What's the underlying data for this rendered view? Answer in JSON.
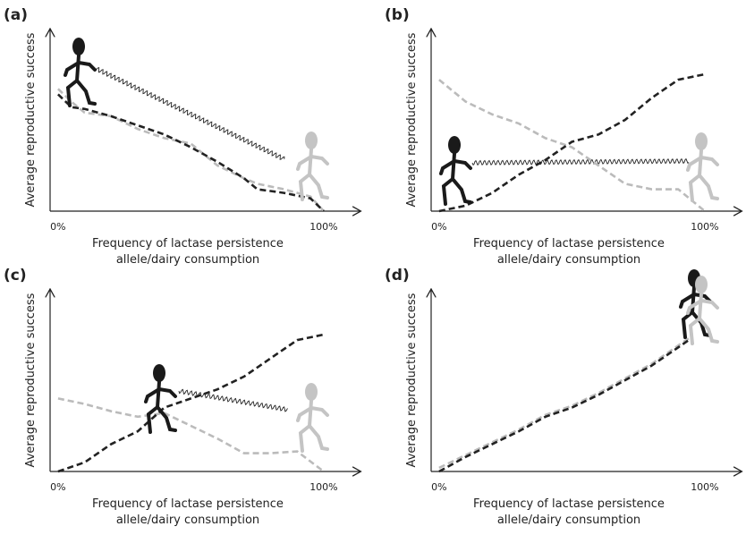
{
  "chart_data": [
    {
      "type": "line",
      "panel_label": "(a)",
      "ylabel": "Average reproductive success",
      "xlabel": [
        "Frequency of lactase persistence",
        "allele/dairy consumption"
      ],
      "xlim": [
        -3,
        114
      ],
      "ylim": [
        0,
        100
      ],
      "xticks": [
        {
          "value": 0,
          "label": "0%"
        },
        {
          "value": 100,
          "label": "100%"
        }
      ],
      "x": [
        0,
        5,
        10,
        20,
        30,
        40,
        50,
        60,
        70,
        75,
        85,
        95,
        100
      ],
      "series": [
        {
          "color": "#222222",
          "values": [
            64,
            57,
            56,
            52,
            47,
            42,
            35,
            27,
            18,
            12,
            10,
            7,
            0
          ]
        },
        {
          "color": "#bbbbbb",
          "values": [
            67,
            60,
            54,
            52,
            45,
            40,
            37,
            25,
            18,
            15,
            12,
            8,
            0
          ]
        }
      ]
    },
    {
      "type": "line",
      "panel_label": "(b)",
      "ylabel": "Average reproductive success",
      "xlabel": [
        "Frequency of lactase persistence",
        "allele/dairy consumption"
      ],
      "xlim": [
        -3,
        114
      ],
      "ylim": [
        0,
        100
      ],
      "xticks": [
        {
          "value": 0,
          "label": "0%"
        },
        {
          "value": 100,
          "label": "100%"
        }
      ],
      "x": [
        0,
        10,
        20,
        30,
        40,
        50,
        60,
        70,
        80,
        90,
        100
      ],
      "series": [
        {
          "color": "#222222",
          "values": [
            0,
            3,
            10,
            20,
            28,
            38,
            42,
            50,
            62,
            72,
            75
          ]
        },
        {
          "color": "#bbbbbb",
          "values": [
            72,
            60,
            53,
            48,
            40,
            35,
            25,
            15,
            12,
            12,
            0
          ]
        }
      ]
    },
    {
      "type": "line",
      "panel_label": "(c)",
      "ylabel": "Average reproductive success",
      "xlabel": [
        "Frequency of lactase persistence",
        "allele/dairy consumption"
      ],
      "xlim": [
        -3,
        114
      ],
      "ylim": [
        0,
        100
      ],
      "xticks": [
        {
          "value": 0,
          "label": "0%"
        },
        {
          "value": 100,
          "label": "100%"
        }
      ],
      "x": [
        0,
        10,
        20,
        30,
        40,
        50,
        60,
        70,
        80,
        90,
        100
      ],
      "series": [
        {
          "color": "#222222",
          "values": [
            0,
            5,
            15,
            22,
            35,
            40,
            45,
            52,
            62,
            72,
            75
          ]
        },
        {
          "color": "#bbbbbb",
          "values": [
            40,
            37,
            33,
            30,
            32,
            25,
            18,
            10,
            10,
            11,
            0
          ]
        }
      ]
    },
    {
      "type": "line",
      "panel_label": "(d)",
      "ylabel": "Average reproductive success",
      "xlabel": [
        "Frequency of lactase persistence",
        "allele/dairy consumption"
      ],
      "xlim": [
        -3,
        114
      ],
      "ylim": [
        0,
        100
      ],
      "xticks": [
        {
          "value": 0,
          "label": "0%"
        },
        {
          "value": 100,
          "label": "100%"
        }
      ],
      "x": [
        0,
        10,
        20,
        30,
        40,
        50,
        60,
        70,
        80,
        90,
        95
      ],
      "series": [
        {
          "color": "#222222",
          "values": [
            0,
            8,
            15,
            22,
            30,
            35,
            42,
            50,
            58,
            68,
            73
          ]
        },
        {
          "color": "#bbbbbb",
          "values": [
            2,
            9,
            16,
            23,
            31,
            36,
            43,
            51,
            59,
            69,
            74
          ]
        }
      ]
    }
  ]
}
